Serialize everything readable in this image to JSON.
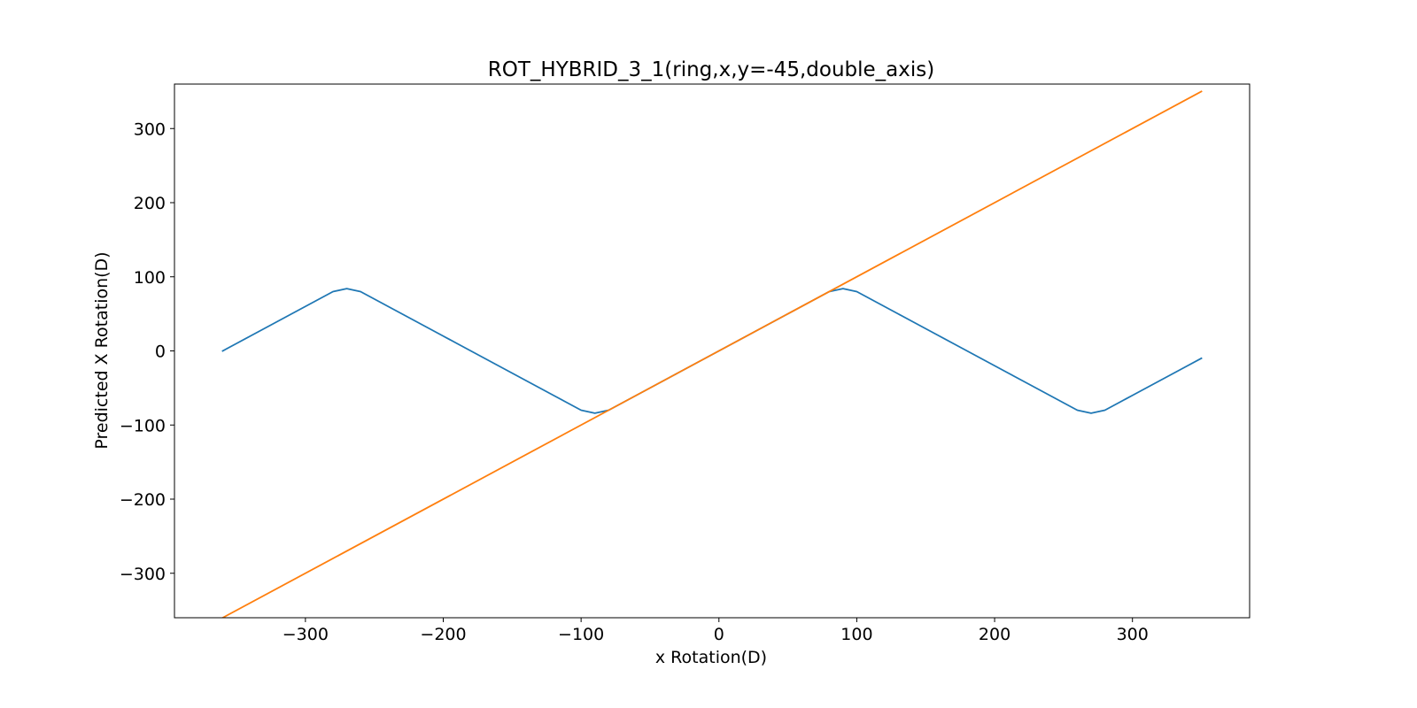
{
  "chart_data": {
    "type": "line",
    "title": "ROT_HYBRID_3_1(ring,x,y=-45,double_axis)",
    "xlabel": "x Rotation(D)",
    "ylabel": "Predicted X Rotation(D)",
    "xlim": [
      -395,
      385
    ],
    "ylim": [
      -360,
      360
    ],
    "xticks": [
      -300,
      -200,
      -100,
      0,
      100,
      200,
      300
    ],
    "yticks": [
      -300,
      -200,
      -100,
      0,
      100,
      200,
      300
    ],
    "grid": false,
    "series": [
      {
        "color": "#1f77b4",
        "x": [
          -360,
          -350,
          -340,
          -330,
          -320,
          -310,
          -300,
          -290,
          -280,
          -270,
          -260,
          -250,
          -240,
          -230,
          -220,
          -210,
          -200,
          -190,
          -180,
          -170,
          -160,
          -150,
          -140,
          -130,
          -120,
          -110,
          -100,
          -90,
          -80,
          -70,
          -60,
          -50,
          -40,
          -30,
          -20,
          -10,
          0,
          10,
          20,
          30,
          40,
          50,
          60,
          70,
          80,
          90,
          100,
          110,
          120,
          130,
          140,
          150,
          160,
          170,
          180,
          190,
          200,
          210,
          220,
          230,
          240,
          250,
          260,
          270,
          280,
          290,
          300,
          310,
          320,
          330,
          340,
          350
        ],
        "y": [
          0,
          10,
          20,
          30,
          40,
          50,
          60,
          70,
          80,
          84,
          80,
          70,
          60,
          50,
          40,
          30,
          20,
          10,
          0,
          -10,
          -20,
          -30,
          -40,
          -50,
          -60,
          -70,
          -80,
          -84,
          -80,
          -70,
          -60,
          -50,
          -40,
          -30,
          -20,
          -10,
          0,
          10,
          20,
          30,
          40,
          50,
          60,
          70,
          80,
          84,
          80,
          70,
          60,
          50,
          40,
          30,
          20,
          10,
          0,
          -10,
          -20,
          -30,
          -40,
          -50,
          -60,
          -70,
          -80,
          -84,
          -80,
          -70,
          -60,
          -50,
          -40,
          -30,
          -20,
          -10
        ]
      },
      {
        "color": "#ff7f0e",
        "x": [
          -360,
          350
        ],
        "y": [
          -360,
          350
        ]
      }
    ]
  }
}
